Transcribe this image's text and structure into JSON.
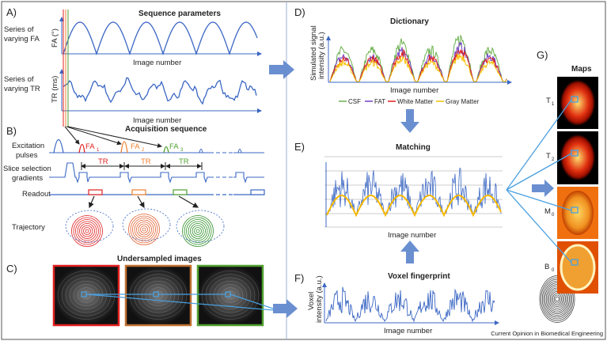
{
  "panels": {
    "A": {
      "label": "A)",
      "title": "Sequence parameters",
      "fa_row": [
        "Series of",
        "varying FA"
      ],
      "fa_axis": "FA (°)",
      "tr_row": [
        "Series of",
        "varying TR"
      ],
      "tr_axis": "TR (ms)",
      "xlabel": "Image number"
    },
    "B": {
      "label": "B)",
      "title": "Acquisition sequence",
      "rows": {
        "excitation": [
          "Excitation",
          "pulses"
        ],
        "slice": [
          "Slice selection",
          "gradients"
        ],
        "readout": "Readout",
        "trajectory": "Trajectory"
      },
      "fa_labels": [
        "FA",
        "FA",
        "FA"
      ],
      "tr_labels": [
        "TR",
        "TR",
        "TR"
      ],
      "subscripts": [
        "1",
        "2",
        "3"
      ]
    },
    "C": {
      "label": "C)",
      "title": "Undersampled images"
    },
    "D": {
      "label": "D)",
      "title": "Dictionary",
      "ylabel": [
        "Simulated signal",
        "intensity (a.u.)"
      ],
      "xlabel": "Image number",
      "legend": [
        "CSF",
        "FAT",
        "White Matter",
        "Gray Matter"
      ]
    },
    "E": {
      "label": "E)",
      "title": "Matching",
      "xlabel": "Image number"
    },
    "F": {
      "label": "F)",
      "title": "Voxel fingerprint",
      "ylabel": [
        "Voxel",
        "intensity (a.u.)"
      ],
      "xlabel": "Image number"
    },
    "G": {
      "label": "G)",
      "title": "Maps",
      "maps": [
        "T",
        "T",
        "M",
        "B"
      ],
      "map_subs": [
        "1",
        "2",
        "0",
        "0"
      ]
    }
  },
  "colors": {
    "blue": "#3b67c4",
    "red": "#e02020",
    "orange": "#f08030",
    "green": "#50a030",
    "purple": "#7040c0",
    "yellow": "#f5c000",
    "csf": "#6ab04c",
    "arrow": "#6a8fd0"
  },
  "footer": "Current Opinion in Biomedical Engineering"
}
